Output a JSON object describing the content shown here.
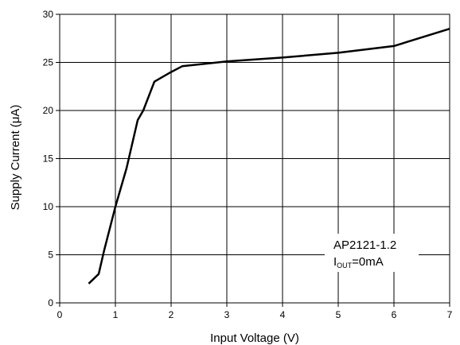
{
  "chart_data": {
    "type": "line",
    "title": "",
    "xlabel": "Input Voltage (V)",
    "ylabel": "Supply Current (μA)",
    "xlim": [
      0,
      7
    ],
    "ylim": [
      0,
      30
    ],
    "xticks": [
      "0",
      "1",
      "2",
      "3",
      "4",
      "5",
      "6",
      "7"
    ],
    "yticks": [
      "0",
      "5",
      "10",
      "15",
      "20",
      "25",
      "30"
    ],
    "grid": true,
    "series": [
      {
        "color": "#000000",
        "x": [
          0.52,
          0.7,
          0.8,
          1.0,
          1.2,
          1.4,
          1.5,
          1.7,
          2.0,
          2.2,
          3.0,
          4.0,
          5.0,
          6.0,
          7.0
        ],
        "y": [
          2.0,
          3.0,
          5.5,
          10.0,
          14.0,
          19.0,
          20.0,
          23.0,
          24.0,
          24.6,
          25.1,
          25.5,
          26.0,
          26.7,
          28.5
        ]
      }
    ],
    "annotation": {
      "line1": "AP2121-1.2",
      "line2_prefix": "I",
      "line2_sub": "OUT",
      "line2_suffix": "=0mA"
    }
  }
}
